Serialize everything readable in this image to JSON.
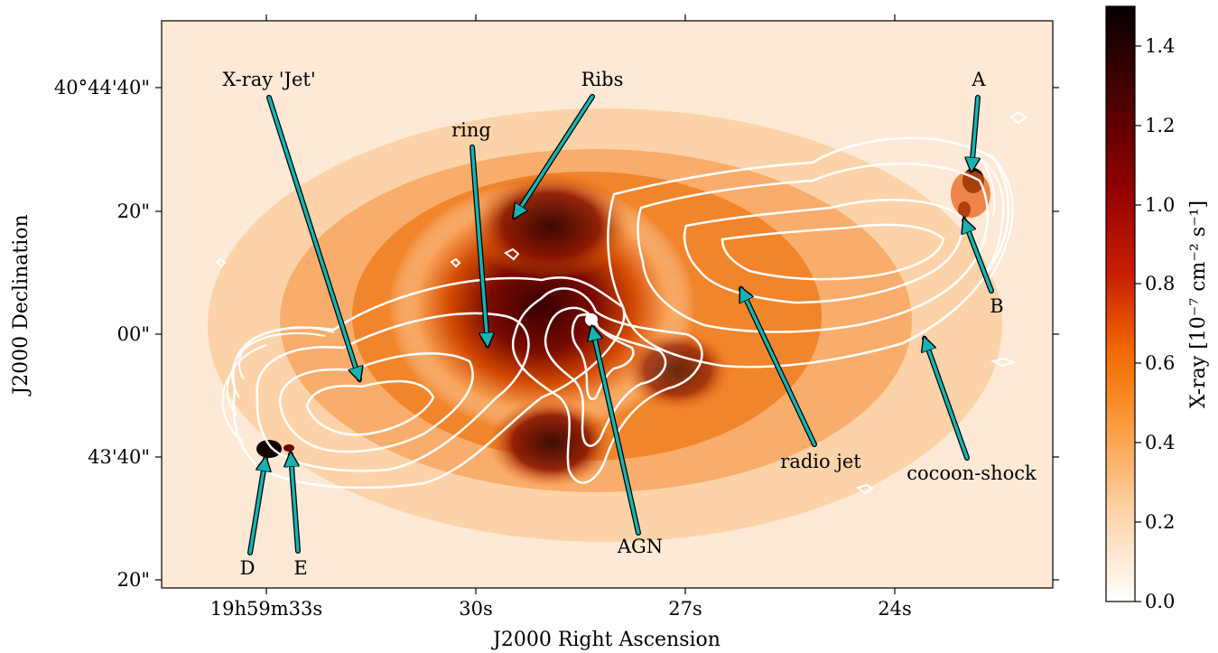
{
  "axes": {
    "xlabel": "J2000 Right Ascension",
    "ylabel": "J2000 Declination",
    "x_ticks": [
      "19h59m33s",
      "30s",
      "27s",
      "24s"
    ],
    "y_ticks": [
      "40°44'40\"",
      "20\"",
      "00\"",
      "43'40\"",
      "20\""
    ]
  },
  "colorbar": {
    "label": "X-ray [10⁻⁷ cm⁻² s⁻¹]",
    "ticks": [
      "0.0",
      "0.2",
      "0.4",
      "0.6",
      "0.8",
      "1.0",
      "1.2",
      "1.4"
    ],
    "range": [
      0.0,
      1.5
    ],
    "colormap": "gist_heat_r"
  },
  "annotations": {
    "xray_jet": "X-ray 'Jet'",
    "ribs": "Ribs",
    "ring": "ring",
    "A": "A",
    "B": "B",
    "radio_jet": "radio jet",
    "cocoon_shock": "cocoon-shock",
    "AGN": "AGN",
    "D": "D",
    "E": "E"
  },
  "colors": {
    "arrow": "#17b3b3",
    "contour": "#ffffff",
    "background": "#fde9d5"
  }
}
